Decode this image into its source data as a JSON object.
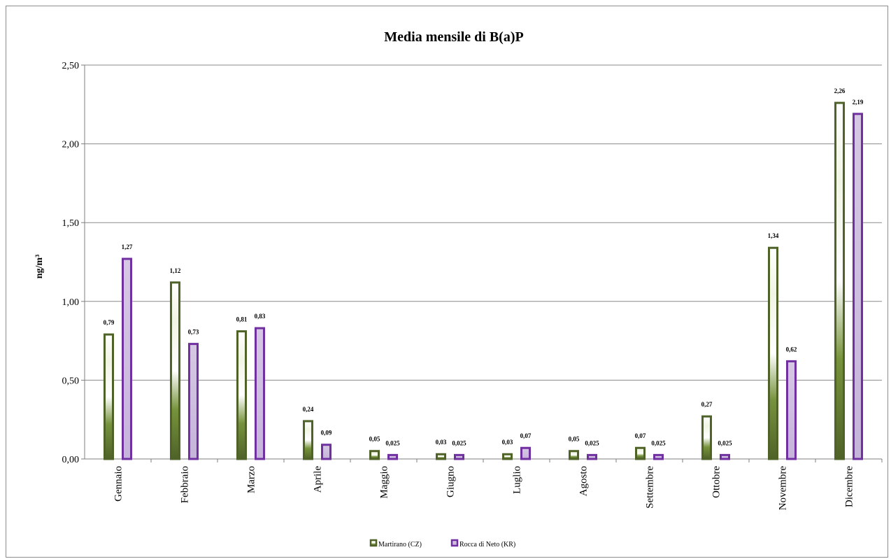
{
  "chart_data": {
    "type": "bar",
    "title": "Media mensile di B(a)P",
    "ylabel": "ng/m³",
    "xlabel": "",
    "ylim": [
      0,
      2.5
    ],
    "yticks": [
      0,
      0.5,
      1,
      1.5,
      2,
      2.5
    ],
    "ytick_labels": [
      "0,00",
      "0,50",
      "1,00",
      "1,50",
      "2,00",
      "2,50"
    ],
    "grid": true,
    "legend_position": "bottom",
    "categories": [
      "Gennaio",
      "Febbraio",
      "Marzo",
      "Aprile",
      "Maggio",
      "Giugno",
      "Luglio",
      "Agosto",
      "Settembre",
      "Ottobre",
      "Novembre",
      "Dicembre"
    ],
    "series": [
      {
        "name": "Martirano (CZ)",
        "color": "#4f6228",
        "values": [
          0.79,
          1.12,
          0.81,
          0.24,
          0.05,
          0.03,
          0.03,
          0.05,
          0.07,
          0.27,
          1.34,
          2.26
        ],
        "labels": [
          "0,79",
          "1,12",
          "0,81",
          "0,24",
          "0,05",
          "0,03",
          "0,03",
          "0,05",
          "0,07",
          "0,27",
          "1,34",
          "2,26"
        ]
      },
      {
        "name": "Rocca di Neto (KR)",
        "color": "#7030a0",
        "values": [
          1.27,
          0.73,
          0.83,
          0.09,
          0.025,
          0.025,
          0.07,
          0.025,
          0.025,
          0.025,
          0.62,
          2.19
        ],
        "labels": [
          "1,27",
          "0,73",
          "0,83",
          "0,09",
          "0,025",
          "0,025",
          "0,07",
          "0,025",
          "0,025",
          "0,025",
          "0,62",
          "2,19"
        ]
      }
    ]
  }
}
